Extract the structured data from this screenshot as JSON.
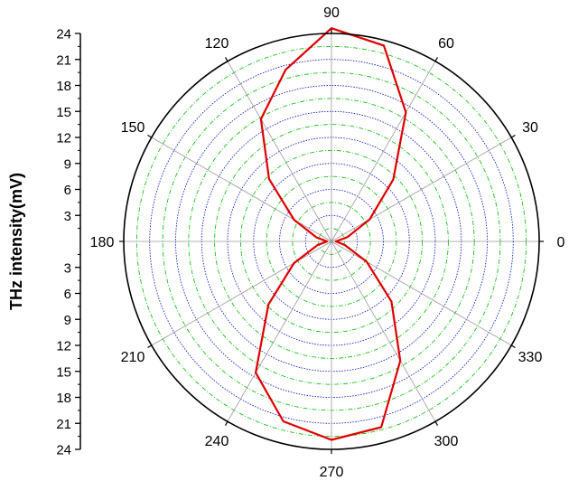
{
  "chart_data": {
    "type": "polar-line",
    "ylabel": "THz intensity(mV)",
    "r_range": [
      0,
      24
    ],
    "r_ticks": [
      3,
      6,
      9,
      12,
      15,
      18,
      21,
      24
    ],
    "r_tick_labels": [
      "3",
      "6",
      "9",
      "12",
      "15",
      "18",
      "21",
      "24"
    ],
    "angle_unit": "degrees",
    "angle_ticks": [
      0,
      30,
      60,
      90,
      120,
      150,
      180,
      210,
      240,
      270,
      300,
      330
    ],
    "angle_tick_labels": [
      "0",
      "30",
      "60",
      "90",
      "120",
      "150",
      "180",
      "210",
      "240",
      "270",
      "300",
      "330"
    ],
    "grid": "on",
    "colors": {
      "series": "#e00000",
      "major_grid": "#0000cc",
      "minor_grid": "#00bb00",
      "spokes": "#9a9a9a",
      "frame": "#000000"
    },
    "series": [
      {
        "theta": [
          0,
          15,
          30,
          45,
          60,
          75,
          90,
          105,
          120,
          135,
          150,
          165,
          180,
          195,
          210,
          225,
          240,
          255,
          270,
          285,
          300,
          315,
          330,
          345
        ],
        "r": [
          0.5,
          1.9,
          5.1,
          10.1,
          17.2,
          23.4,
          24.6,
          20.5,
          16.3,
          10.2,
          5.0,
          1.8,
          0.5,
          1.7,
          5.0,
          10.3,
          17.5,
          21.5,
          22.9,
          22.2,
          15.9,
          9.8,
          4.7,
          1.6
        ]
      }
    ]
  }
}
